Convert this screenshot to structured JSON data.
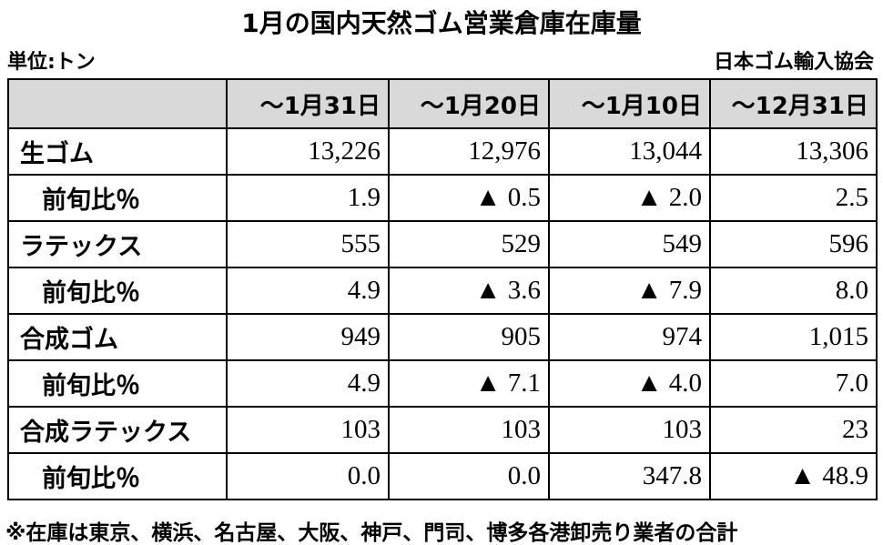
{
  "header": {
    "title": "1月の国内天然ゴム営業倉庫在庫量",
    "unit": "単位:トン",
    "source": "日本ゴム輸入協会"
  },
  "table": {
    "columns": [
      "～1月31日",
      "～1月20日",
      "～1月10日",
      "～12月31日"
    ],
    "rows": [
      {
        "label": "生ゴム",
        "cells": [
          "13,226",
          "12,976",
          "13,044",
          "13,306"
        ]
      },
      {
        "label": "前旬比％",
        "cells": [
          "1.9",
          "▲ 0.5",
          "▲ 2.0",
          "2.5"
        ]
      },
      {
        "label": "ラテックス",
        "cells": [
          "555",
          "529",
          "549",
          "596"
        ]
      },
      {
        "label": "前旬比％",
        "cells": [
          "4.9",
          "▲ 3.6",
          "▲ 7.9",
          "8.0"
        ]
      },
      {
        "label": "合成ゴム",
        "cells": [
          "949",
          "905",
          "974",
          "1,015"
        ]
      },
      {
        "label": "前旬比％",
        "cells": [
          "4.9",
          "▲ 7.1",
          "▲ 4.0",
          "7.0"
        ]
      },
      {
        "label": "合成ラテックス",
        "cells": [
          "103",
          "103",
          "103",
          "23"
        ]
      },
      {
        "label": "前旬比％",
        "cells": [
          "0.0",
          "0.0",
          "347.8",
          "▲ 48.9"
        ]
      }
    ]
  },
  "footnote": "※在庫は東京、横浜、名古屋、大阪、神戸、門司、博多各港卸売り業者の合計"
}
